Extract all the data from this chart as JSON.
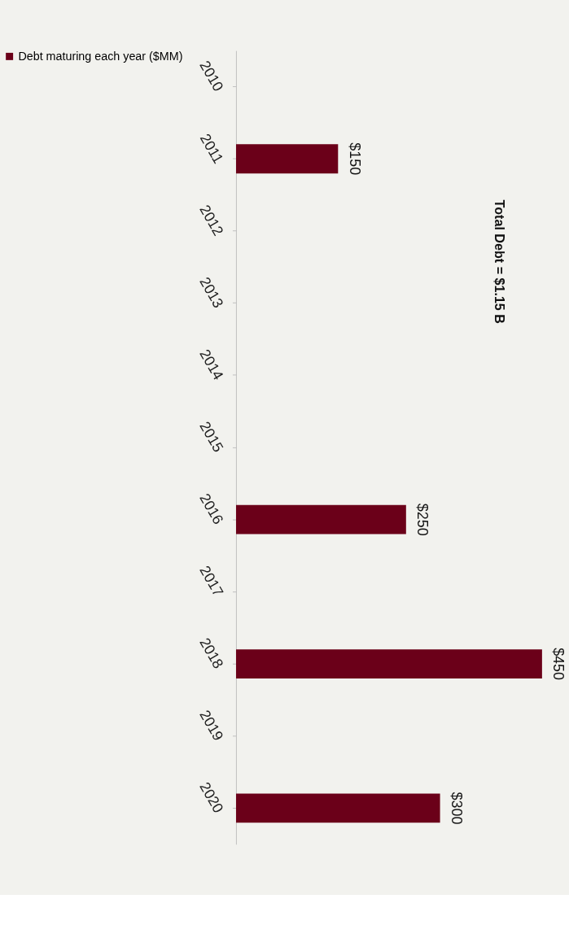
{
  "chart_data": {
    "type": "bar",
    "orientation": "horizontal",
    "categories": [
      "2010",
      "2011",
      "2012",
      "2013",
      "2014",
      "2015",
      "2016",
      "2017",
      "2018",
      "2019",
      "2020"
    ],
    "series": [
      {
        "name": "Debt maturing each year ($MM)",
        "color": "#6b0019",
        "values": [
          null,
          150,
          null,
          null,
          null,
          null,
          250,
          null,
          450,
          null,
          300
        ],
        "value_labels": [
          null,
          "$150",
          null,
          null,
          null,
          null,
          "$250",
          null,
          "$450",
          null,
          "$300"
        ]
      }
    ],
    "annotations": [
      "Total Debt  =  $1.15 B"
    ],
    "legend": "left",
    "grid": false
  }
}
